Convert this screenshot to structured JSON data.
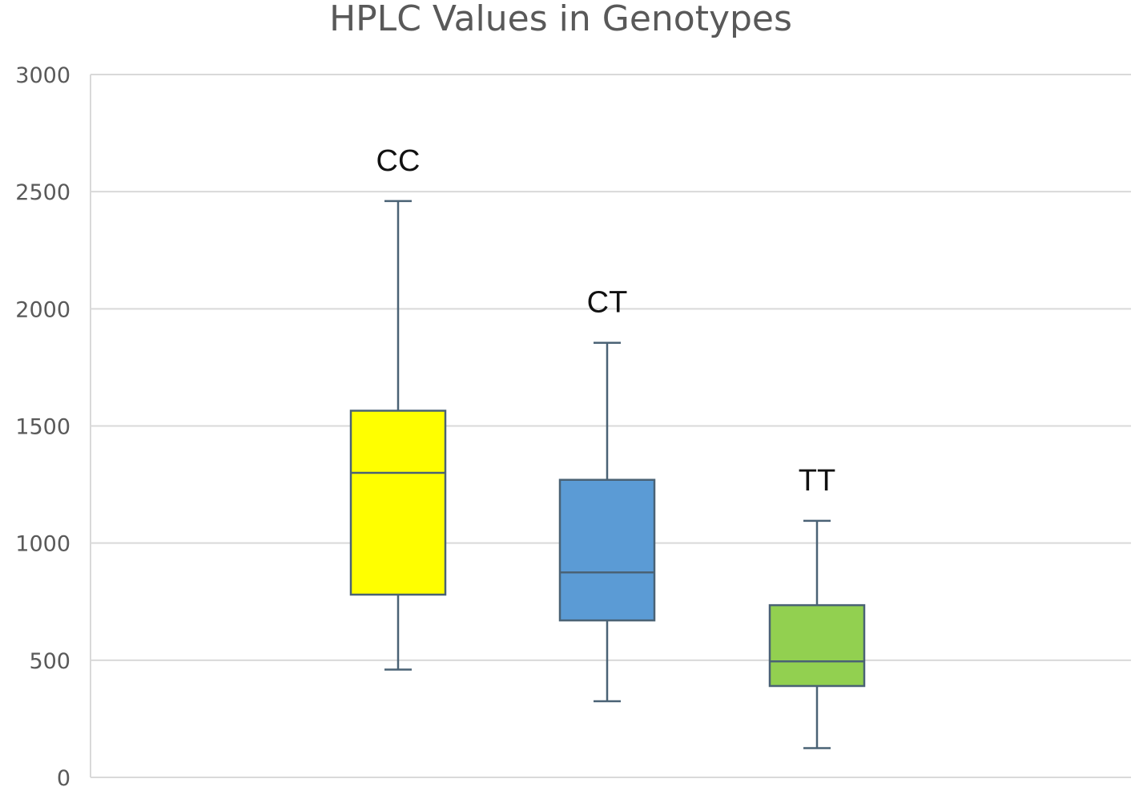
{
  "chart_data": {
    "type": "box",
    "title": "HPLC Values in Genotypes",
    "xlabel": "",
    "ylabel": "",
    "ylim": [
      0,
      3000
    ],
    "y_ticks": [
      "0",
      "500",
      "1000",
      "1500",
      "2000",
      "2500",
      "3000"
    ],
    "grid": true,
    "series": [
      {
        "name": "CC",
        "min": 460,
        "q1": 780,
        "median": 1300,
        "q3": 1565,
        "max": 2460,
        "color": "#ffff00"
      },
      {
        "name": "CT",
        "min": 325,
        "q1": 670,
        "median": 875,
        "q3": 1270,
        "max": 1855,
        "color": "#5b9bd5"
      },
      {
        "name": "TT",
        "min": 125,
        "q1": 390,
        "median": 495,
        "q3": 735,
        "max": 1095,
        "color": "#92d050"
      }
    ]
  }
}
